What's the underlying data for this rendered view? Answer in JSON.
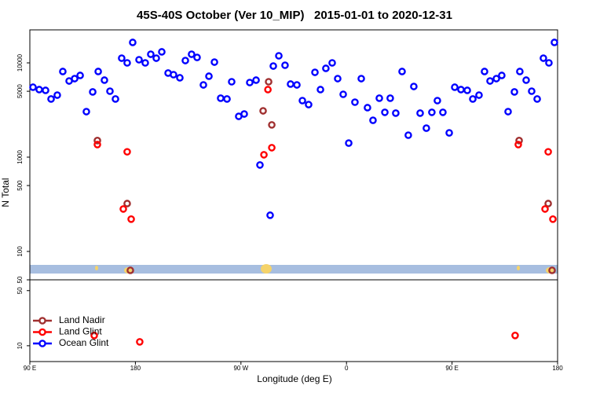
{
  "chart_data": [
    {
      "type": "scatter",
      "title": "45S-40S October (Ver 10_MIP)   2015-01-01 to 2020-12-31",
      "y_label": "N Total",
      "xlim": [
        90,
        540
      ],
      "ylim": [
        50,
        22400
      ],
      "log_y": true,
      "yticks": [
        50,
        100,
        500,
        1000,
        5000,
        10000
      ],
      "series": [
        {
          "color": "#a03030",
          "x": [
            147.6,
            173,
            175.7,
            293.6,
            288.9,
            296.3,
            507.2,
            532,
            535.3
          ],
          "values": [
            1500,
            322,
            63,
            6310,
            3100,
            2200,
            1500,
            322,
            63
          ]
        },
        {
          "color": "#ff0000",
          "x": [
            147.6,
            173,
            169.7,
            176.4,
            293,
            296.3,
            289.6,
            506.5,
            532,
            529.3,
            536
          ],
          "values": [
            1360,
            1140,
            282,
            220,
            5210,
            1260,
            1060,
            1360,
            1140,
            282,
            220
          ]
        },
        {
          "color": "#0000ff",
          "x": [
            92.7,
            98,
            103.4,
            108.1,
            113.4,
            118.1,
            123.5,
            128.2,
            132.9,
            138.2,
            143.6,
            148.3,
            153.6,
            158.3,
            163,
            168.3,
            173,
            177.7,
            183.1,
            188.4,
            193.1,
            197.8,
            202.5,
            207.9,
            212.5,
            217.9,
            222.6,
            227.9,
            232.6,
            238,
            242.7,
            247.4,
            252.7,
            258.1,
            262.1,
            268.1,
            272.8,
            277.5,
            282.9,
            286.2,
            294.9,
            297.6,
            302.3,
            307.6,
            312.3,
            317.7,
            322.4,
            327.7,
            333.1,
            337.8,
            342.4,
            347.8,
            352.5,
            357.2,
            361.9,
            367.2,
            372.6,
            377.9,
            382.6,
            388,
            392.7,
            397.3,
            402,
            407.4,
            412.7,
            417.4,
            422.8,
            428.1,
            432.8,
            437.5,
            442.2,
            447.6,
            452.3,
            457.6,
            463,
            467.7,
            473,
            477.7,
            482.4,
            487.8,
            492.4,
            497.8,
            503.2,
            507.8,
            513.2,
            517.9,
            522.6,
            527.9,
            532.6,
            537.3
          ],
          "values": [
            5520,
            5210,
            5110,
            4140,
            4550,
            8100,
            6430,
            6810,
            7360,
            3040,
            4920,
            8100,
            6560,
            5010,
            4140,
            11220,
            10000,
            16480,
            10800,
            10000,
            12350,
            11220,
            13090,
            7800,
            7500,
            6950,
            10590,
            12350,
            11430,
            5840,
            7220,
            10190,
            4220,
            4140,
            6310,
            2710,
            2870,
            6190,
            6560,
            826,
            242,
            9260,
            11890,
            9440,
            5960,
            5840,
            3980,
            3610,
            7940,
            5210,
            8750,
            10000,
            6810,
            4640,
            1410,
            3830,
            6810,
            3350,
            2460,
            4220,
            2990,
            4220,
            2930,
            8100,
            1710,
            5620,
            2930,
            2030,
            2990,
            3980,
            2990,
            1810,
            5520,
            5210,
            5110,
            4140,
            4550,
            8100,
            6430,
            6810,
            7360,
            3040,
            4920,
            8100,
            6560,
            5010,
            4140,
            11220,
            10000,
            16480
          ]
        }
      ]
    },
    {
      "type": "scatter",
      "x_label": "Longitude (deg E)",
      "xlim": [
        90,
        540
      ],
      "ylim": [
        6.3,
        67
      ],
      "log_y": true,
      "xticks": [
        {
          "value": 90,
          "label": "90 E"
        },
        180,
        {
          "value": 270,
          "label": "90 W"
        },
        {
          "value": 360,
          "label": "0"
        },
        {
          "value": 450,
          "label": "90 E"
        },
        {
          "value": 540,
          "label": "180"
        }
      ],
      "yticks": [
        10,
        50
      ],
      "legend": "lower left",
      "series": [
        {
          "name": "Land Nadir",
          "color": "#a03030",
          "x": [],
          "values": []
        },
        {
          "name": "Land Glint",
          "color": "#ff0000",
          "x": [
            144.9,
            183.7,
            503.8
          ],
          "values": [
            13.5,
            11.2,
            13.5
          ]
        },
        {
          "name": "Ocean Glint",
          "color": "#0000ff",
          "x": [],
          "values": []
        }
      ]
    }
  ]
}
